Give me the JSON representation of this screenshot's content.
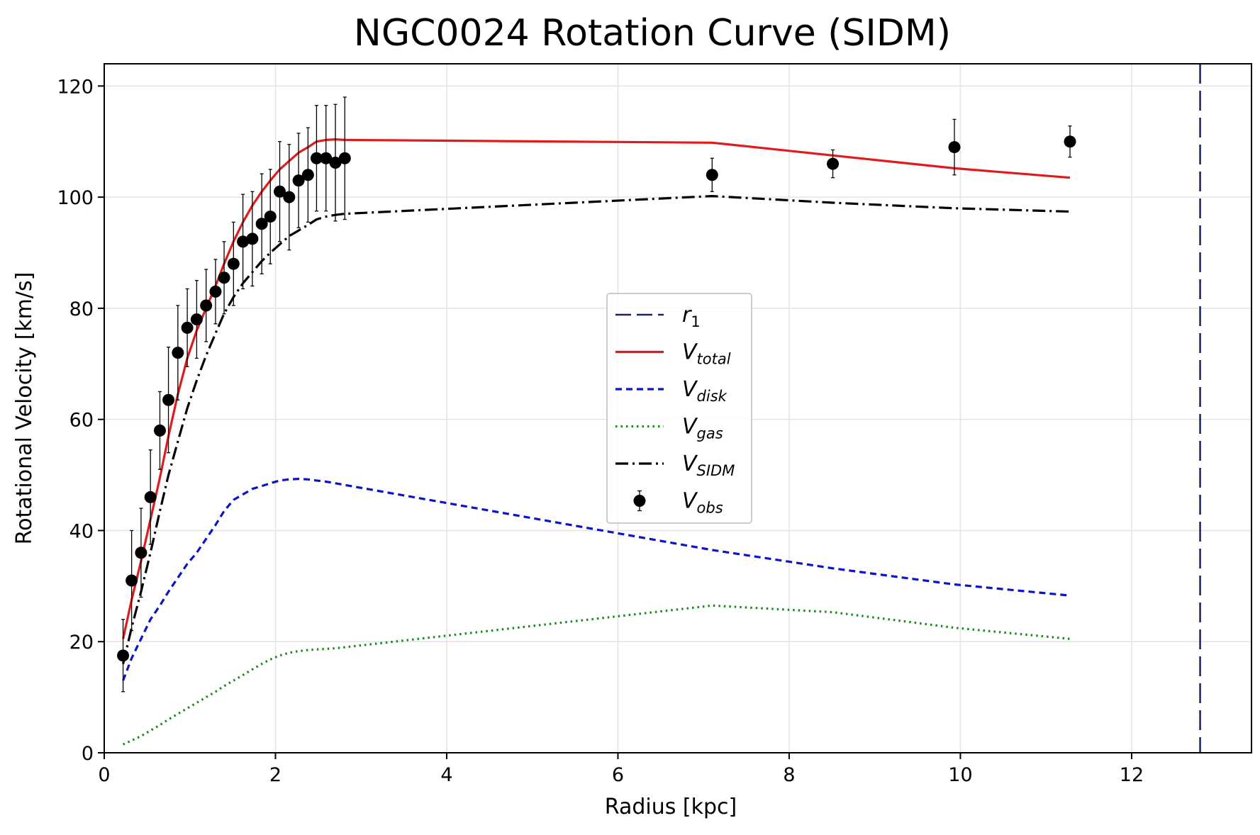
{
  "chart_data": {
    "type": "line",
    "title": "NGC0024 Rotation Curve (SIDM)",
    "xlabel": "Radius [kpc]",
    "ylabel": "Rotational Velocity [km/s]",
    "xlim": [
      0,
      13.4
    ],
    "ylim": [
      0,
      124
    ],
    "xticks": [
      0,
      2,
      4,
      6,
      8,
      10,
      12
    ],
    "yticks": [
      0,
      20,
      40,
      60,
      80,
      100,
      120
    ],
    "grid": true,
    "legend_position": "center",
    "r1": 12.8,
    "x": [
      0.22,
      0.32,
      0.43,
      0.54,
      0.65,
      0.75,
      0.86,
      0.97,
      1.08,
      1.19,
      1.3,
      1.4,
      1.51,
      1.62,
      1.73,
      1.84,
      1.94,
      2.05,
      2.16,
      2.27,
      2.38,
      2.48,
      2.59,
      2.7,
      2.81,
      7.1,
      8.51,
      9.93,
      11.28
    ],
    "series": [
      {
        "key": "r1",
        "legend": "r",
        "legend_sub": "1",
        "color": "#1c1f6b",
        "dash": "28,10"
      },
      {
        "key": "v_total",
        "legend": "V",
        "legend_sub": "total",
        "color": "#e01b1b",
        "dash": "",
        "values": [
          20.5,
          27.5,
          34.5,
          42.0,
          49.5,
          57.0,
          64.5,
          71.0,
          76.0,
          80.0,
          84.0,
          88.0,
          92.0,
          95.5,
          98.5,
          101.0,
          103.0,
          105.0,
          106.5,
          108.0,
          109.0,
          110.0,
          110.3,
          110.4,
          110.3,
          109.8,
          107.5,
          105.2,
          103.5
        ]
      },
      {
        "key": "v_disk",
        "legend": "V",
        "legend_sub": "disk",
        "color": "#0a14c8",
        "dash": "9,6",
        "values": [
          13.0,
          17.0,
          20.5,
          24.0,
          26.5,
          29.0,
          31.5,
          34.0,
          36.0,
          38.5,
          41.0,
          43.5,
          45.5,
          46.5,
          47.5,
          48.0,
          48.5,
          49.0,
          49.2,
          49.3,
          49.2,
          49.0,
          48.8,
          48.5,
          48.2,
          36.5,
          33.2,
          30.3,
          28.3
        ]
      },
      {
        "key": "v_gas",
        "legend": "V",
        "legend_sub": "gas",
        "color": "#1a8a1a",
        "dash": "2.5,5",
        "values": [
          1.5,
          2.2,
          3.0,
          4.0,
          5.0,
          6.0,
          7.0,
          8.0,
          9.0,
          10.0,
          11.0,
          12.0,
          13.0,
          14.0,
          15.0,
          16.0,
          16.8,
          17.5,
          18.0,
          18.3,
          18.5,
          18.6,
          18.7,
          18.8,
          19.0,
          26.5,
          25.3,
          22.5,
          20.5
        ]
      },
      {
        "key": "v_sidm",
        "legend": "V",
        "legend_sub": "SIDM",
        "color": "#000000",
        "dash": "18,6,3,6",
        "values": [
          16.0,
          22.5,
          29.0,
          36.0,
          43.5,
          50.0,
          56.0,
          62.0,
          67.0,
          71.5,
          75.5,
          79.0,
          82.0,
          84.5,
          86.5,
          88.5,
          90.0,
          91.5,
          93.0,
          94.0,
          95.0,
          96.0,
          96.5,
          96.8,
          97.0,
          100.2,
          99.0,
          98.0,
          97.4
        ]
      },
      {
        "key": "v_obs",
        "legend": "V",
        "legend_sub": "obs",
        "color": "#000000",
        "values": [
          17.5,
          31.0,
          36.0,
          46.0,
          58.0,
          63.5,
          72.0,
          76.5,
          78.0,
          80.5,
          83.0,
          85.5,
          88.0,
          92.0,
          92.5,
          95.2,
          96.5,
          101.0,
          100.0,
          103.0,
          104.0,
          107.0,
          107.0,
          106.2,
          107.0,
          104.0,
          106.0,
          109.0,
          110.0
        ],
        "errors": [
          6.5,
          9.0,
          8.0,
          8.5,
          7.0,
          9.5,
          8.5,
          7.0,
          7.0,
          6.5,
          5.8,
          6.5,
          7.5,
          8.5,
          8.5,
          9.0,
          8.5,
          9.0,
          9.5,
          8.5,
          8.5,
          9.5,
          9.5,
          10.5,
          11.0,
          3.0,
          2.5,
          5.0,
          2.8
        ]
      }
    ]
  }
}
